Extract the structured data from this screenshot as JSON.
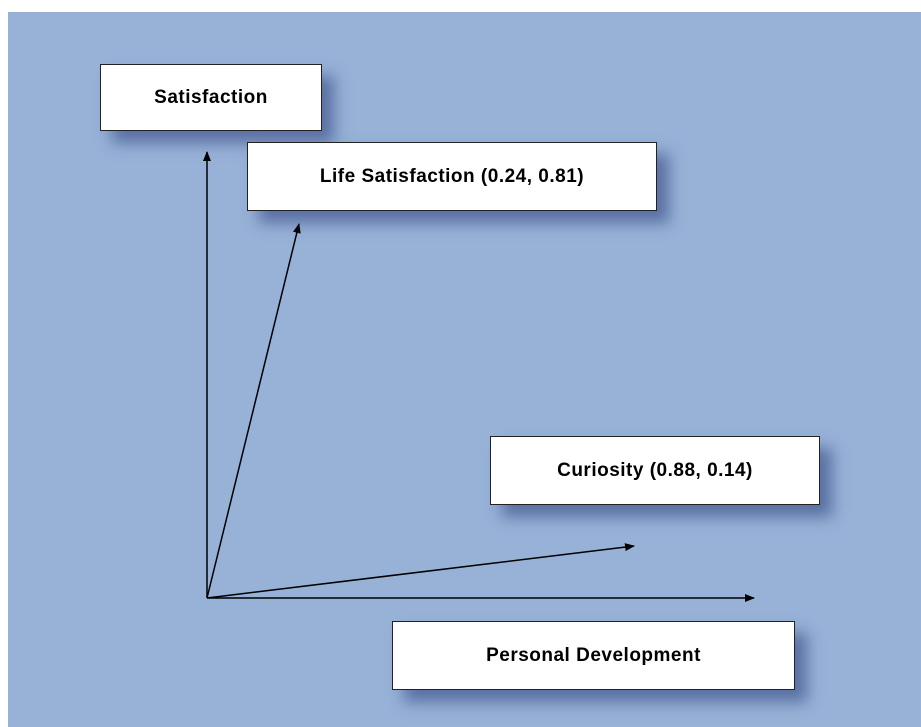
{
  "nodes": [
    {
      "label": "Satisfaction"
    },
    {
      "label": "Life Satisfaction (0.24, 0.81)"
    },
    {
      "label": "Curiosity (0.88, 0.14)"
    },
    {
      "label": "Personal Development"
    }
  ]
}
